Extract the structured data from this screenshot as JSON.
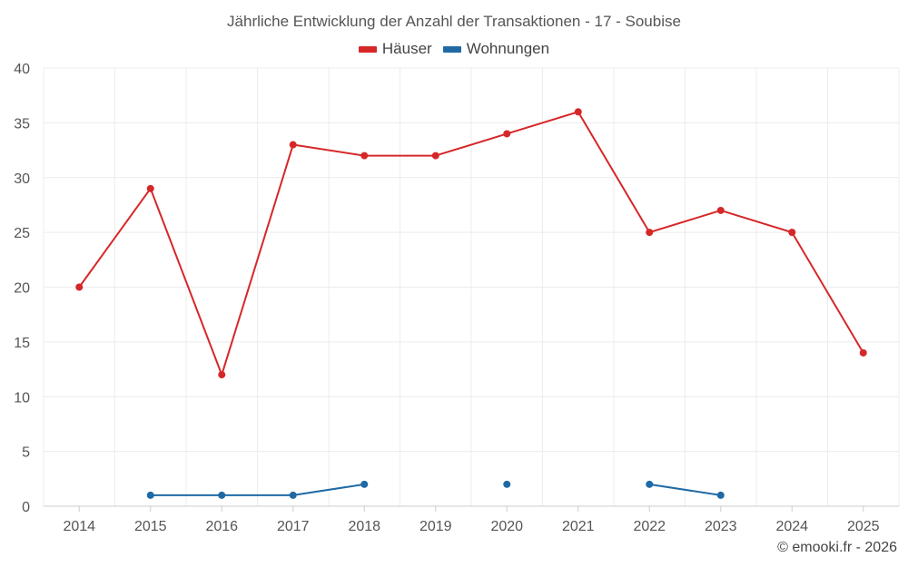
{
  "chart_data": {
    "type": "line",
    "title": "Jährliche Entwicklung der Anzahl der Transaktionen - 17 - Soubise",
    "categories": [
      "2014",
      "2015",
      "2016",
      "2017",
      "2018",
      "2019",
      "2020",
      "2021",
      "2022",
      "2023",
      "2024",
      "2025"
    ],
    "series": [
      {
        "name": "Häuser",
        "color": "#d62728",
        "values": [
          20,
          29,
          12,
          33,
          32,
          32,
          34,
          36,
          25,
          27,
          25,
          14
        ]
      },
      {
        "name": "Wohnungen",
        "color": "#1f6aa5",
        "values": [
          null,
          1,
          1,
          1,
          2,
          null,
          2,
          null,
          2,
          1,
          null,
          null
        ]
      }
    ],
    "ylim": [
      0,
      40
    ],
    "yticks": [
      "0",
      "5",
      "10",
      "15",
      "20",
      "25",
      "30",
      "35",
      "40"
    ],
    "grid": true,
    "legend": "top-center"
  },
  "credit": "© emooki.fr - 2026"
}
